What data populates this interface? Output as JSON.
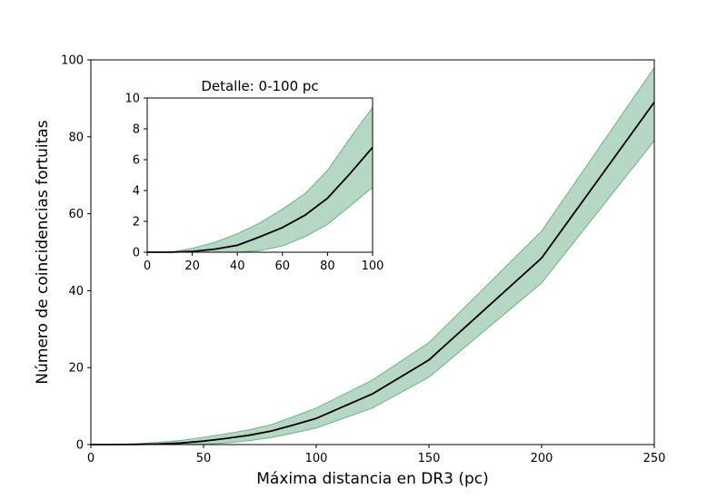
{
  "chart_data": [
    {
      "type": "area",
      "title": "",
      "xlabel": "Máxima distancia en DR3 (pc)",
      "ylabel": "Número de coincidencias fortuitas",
      "xlim": [
        0,
        250
      ],
      "ylim": [
        0,
        100
      ],
      "xticks": [
        0,
        50,
        100,
        150,
        200,
        250
      ],
      "yticks": [
        0,
        20,
        40,
        60,
        80,
        100
      ],
      "grid": false,
      "line_color": "#000000",
      "band_color": "#2e8b57",
      "x": [
        0,
        10,
        20,
        30,
        40,
        50,
        60,
        70,
        80,
        90,
        100,
        125,
        150,
        200,
        250
      ],
      "series": [
        {
          "role": "mean",
          "values": [
            0,
            0,
            0.05,
            0.15,
            0.4,
            0.9,
            1.6,
            2.4,
            3.5,
            5.1,
            6.8,
            13.2,
            22,
            48.5,
            89
          ]
        },
        {
          "role": "upper",
          "values": [
            0,
            0,
            0.2,
            0.6,
            1.1,
            1.9,
            2.8,
            3.8,
            5.2,
            7.3,
            9.5,
            16.8,
            26.5,
            55.5,
            98
          ]
        },
        {
          "role": "lower",
          "values": [
            0,
            0,
            0,
            0,
            0,
            0.1,
            0.4,
            1,
            1.8,
            3,
            4.3,
            9.5,
            17.5,
            42,
            79
          ]
        }
      ]
    },
    {
      "type": "area",
      "title": "Detalle: 0-100 pc",
      "xlabel": "",
      "ylabel": "",
      "xlim": [
        0,
        100
      ],
      "ylim": [
        0,
        10
      ],
      "xticks": [
        0,
        20,
        40,
        60,
        80,
        100
      ],
      "yticks": [
        0,
        2,
        4,
        6,
        8,
        10
      ],
      "grid": false,
      "line_color": "#000000",
      "band_color": "#2e8b57",
      "x": [
        0,
        10,
        20,
        30,
        40,
        50,
        60,
        70,
        80,
        90,
        100
      ],
      "series": [
        {
          "role": "mean",
          "values": [
            0,
            0,
            0.05,
            0.2,
            0.45,
            1,
            1.6,
            2.4,
            3.5,
            5.1,
            6.8
          ]
        },
        {
          "role": "upper",
          "values": [
            0,
            0,
            0.25,
            0.65,
            1.2,
            1.9,
            2.8,
            3.8,
            5.3,
            7.4,
            9.4
          ]
        },
        {
          "role": "lower",
          "values": [
            0,
            0,
            0,
            0,
            0,
            0.1,
            0.4,
            1,
            1.8,
            3,
            4.2
          ]
        }
      ]
    }
  ]
}
